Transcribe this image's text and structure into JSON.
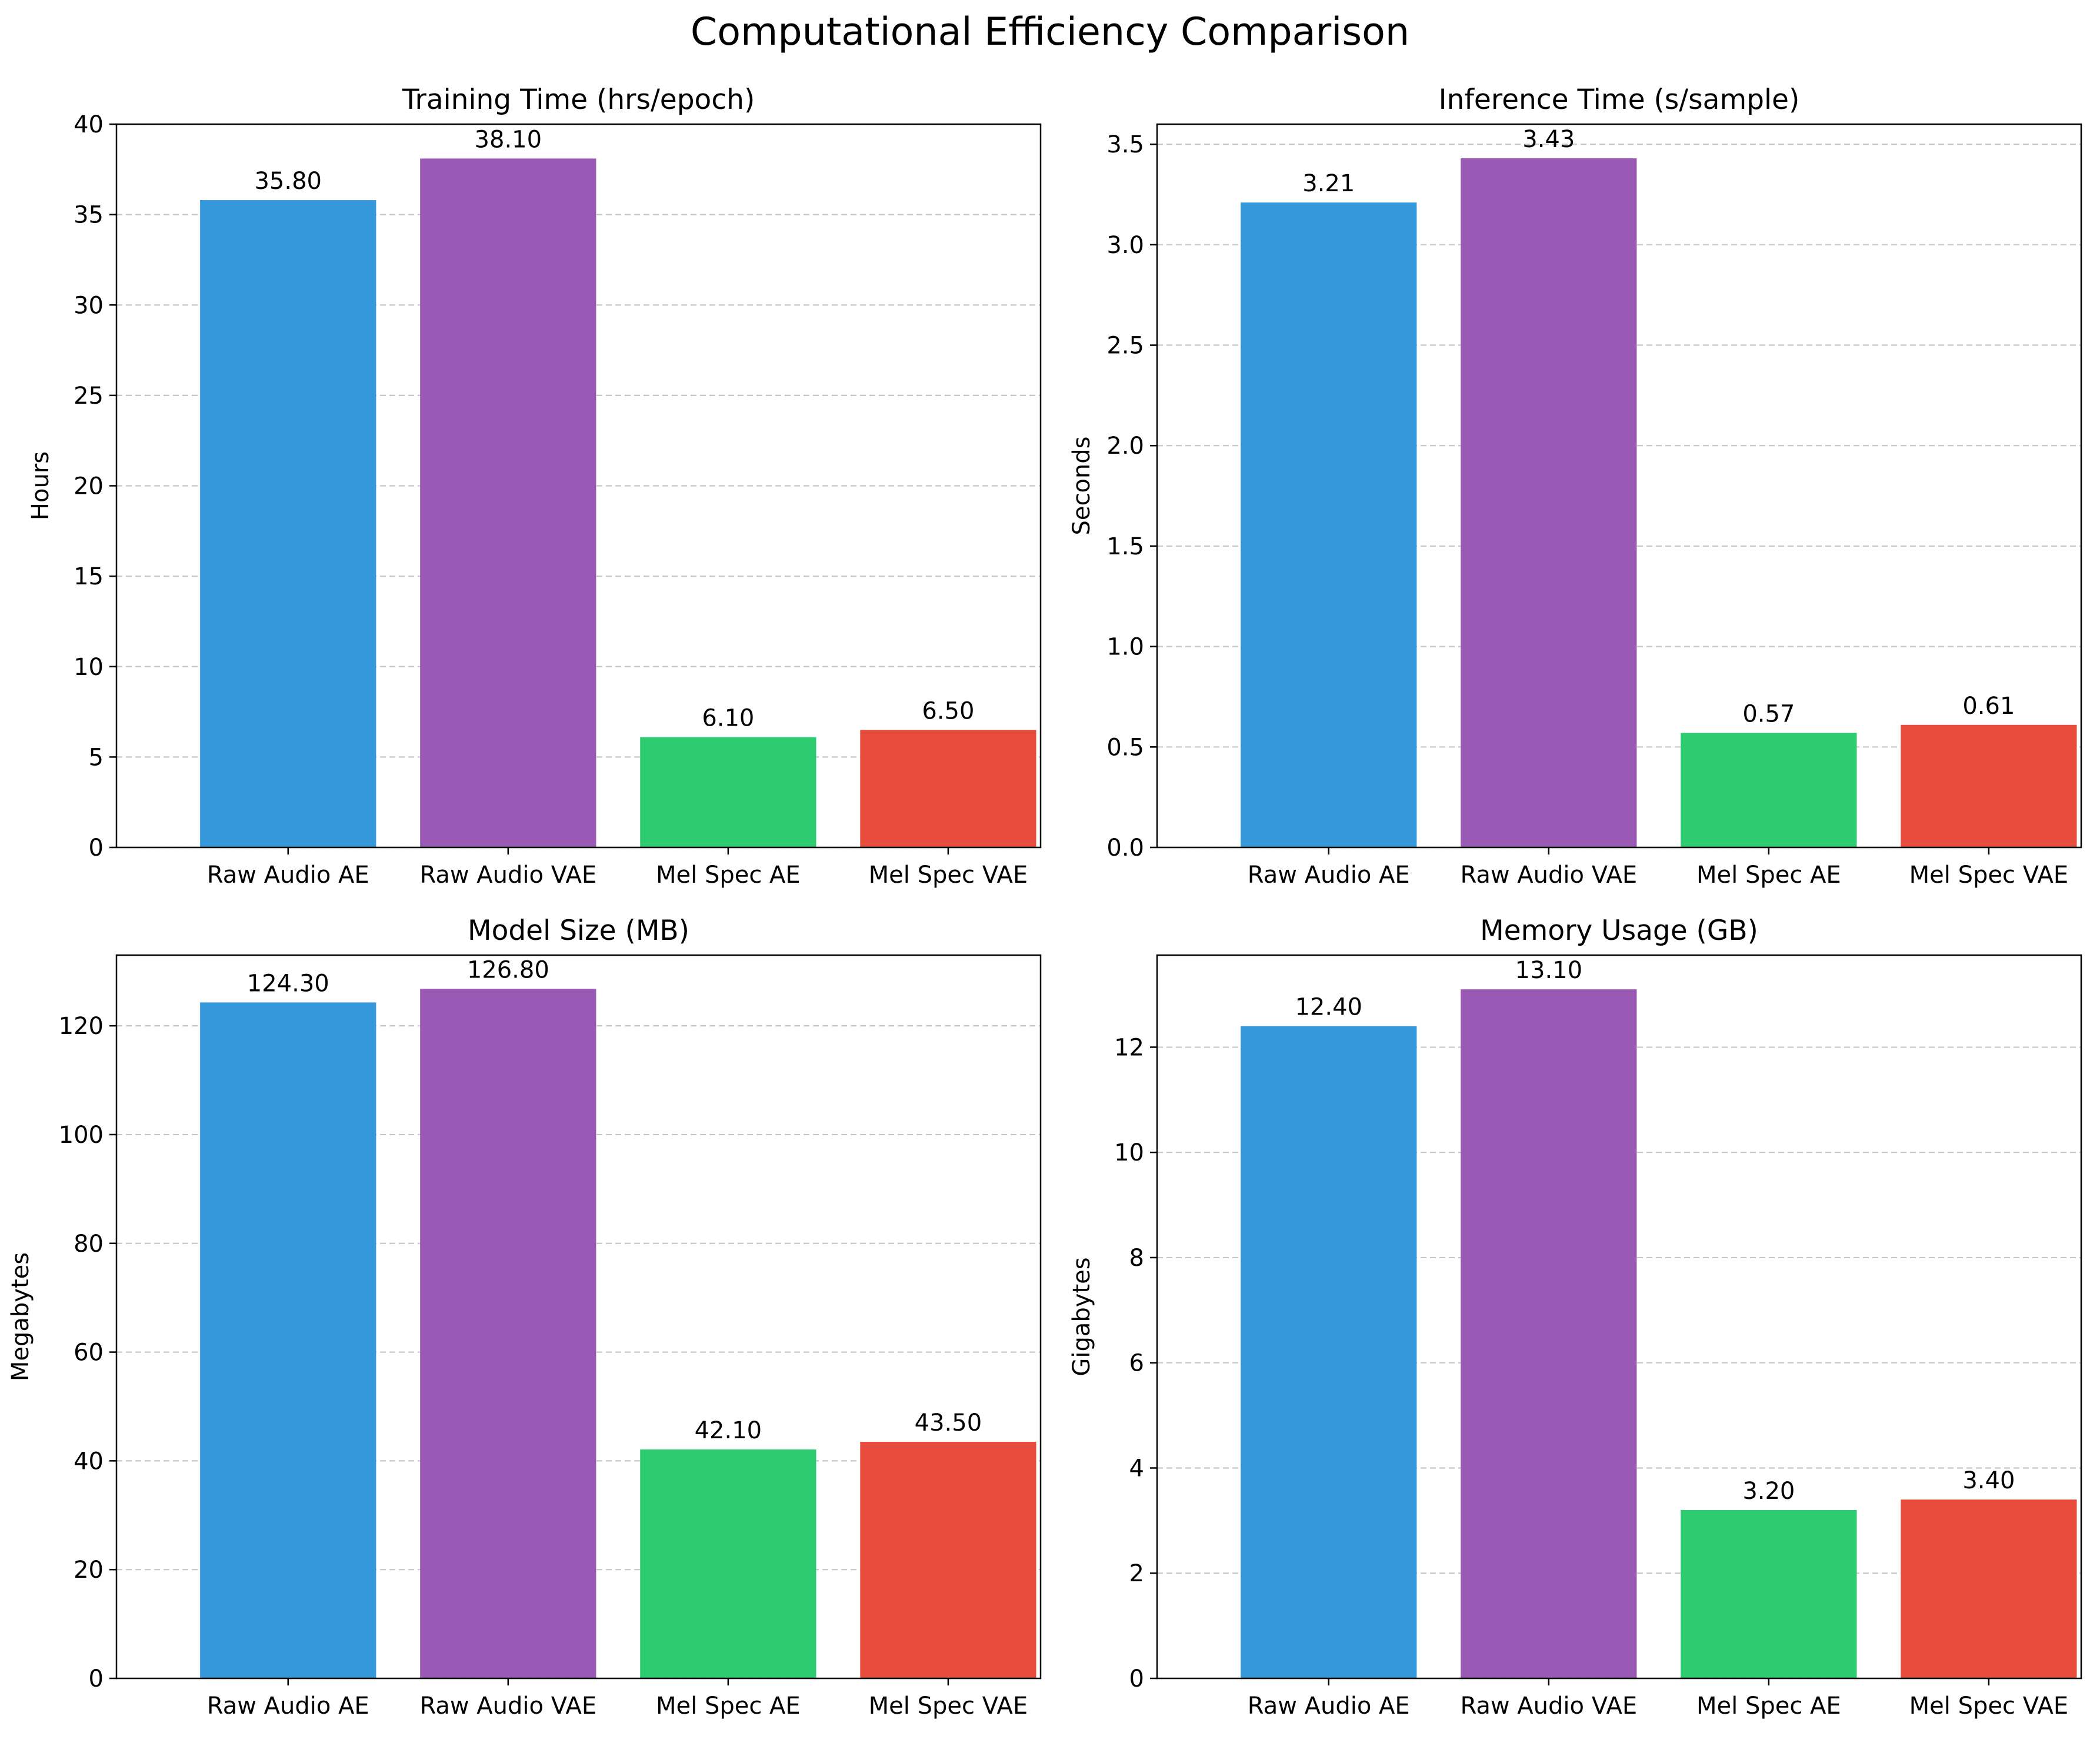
{
  "figure_title": "Computational Efficiency Comparison",
  "chart_data": [
    {
      "type": "bar",
      "title": "Training Time (hrs/epoch)",
      "xlabel": "",
      "ylabel": "Hours",
      "categories": [
        "Raw Audio AE",
        "Raw Audio VAE",
        "Mel Spec AE",
        "Mel Spec VAE"
      ],
      "values": [
        35.8,
        38.1,
        6.1,
        6.5
      ],
      "value_labels": [
        "35.80",
        "38.10",
        "6.10",
        "6.50"
      ],
      "colors": [
        "#3498db",
        "#9b59b6",
        "#2ecc71",
        "#e74c3c"
      ],
      "ylim": [
        0,
        40
      ],
      "yticks": [
        0,
        5,
        10,
        15,
        20,
        25,
        30,
        35,
        40
      ],
      "ytick_labels": [
        "0",
        "5",
        "10",
        "15",
        "20",
        "25",
        "30",
        "35",
        "40"
      ],
      "grid": "y-dashed"
    },
    {
      "type": "bar",
      "title": "Inference Time (s/sample)",
      "xlabel": "",
      "ylabel": "Seconds",
      "categories": [
        "Raw Audio AE",
        "Raw Audio VAE",
        "Mel Spec AE",
        "Mel Spec VAE"
      ],
      "values": [
        3.21,
        3.43,
        0.57,
        0.61
      ],
      "value_labels": [
        "3.21",
        "3.43",
        "0.57",
        "0.61"
      ],
      "colors": [
        "#3498db",
        "#9b59b6",
        "#2ecc71",
        "#e74c3c"
      ],
      "ylim": [
        0,
        3.6
      ],
      "yticks": [
        0,
        0.5,
        1,
        1.5,
        2,
        2.5,
        3,
        3.5
      ],
      "ytick_labels": [
        "0.0",
        "0.5",
        "1.0",
        "1.5",
        "2.0",
        "2.5",
        "3.0",
        "3.5"
      ],
      "grid": "y-dashed"
    },
    {
      "type": "bar",
      "title": "Model Size (MB)",
      "xlabel": "",
      "ylabel": "Megabytes",
      "categories": [
        "Raw Audio AE",
        "Raw Audio VAE",
        "Mel Spec AE",
        "Mel Spec VAE"
      ],
      "values": [
        124.3,
        126.8,
        42.1,
        43.5
      ],
      "value_labels": [
        "124.30",
        "126.80",
        "42.10",
        "43.50"
      ],
      "colors": [
        "#3498db",
        "#9b59b6",
        "#2ecc71",
        "#e74c3c"
      ],
      "ylim": [
        0,
        133
      ],
      "yticks": [
        0,
        20,
        40,
        60,
        80,
        100,
        120
      ],
      "ytick_labels": [
        "0",
        "20",
        "40",
        "60",
        "80",
        "100",
        "120"
      ],
      "grid": "y-dashed"
    },
    {
      "type": "bar",
      "title": "Memory Usage (GB)",
      "xlabel": "",
      "ylabel": "Gigabytes",
      "categories": [
        "Raw Audio AE",
        "Raw Audio VAE",
        "Mel Spec AE",
        "Mel Spec VAE"
      ],
      "values": [
        12.4,
        13.1,
        3.2,
        3.4
      ],
      "value_labels": [
        "12.40",
        "13.10",
        "3.20",
        "3.40"
      ],
      "colors": [
        "#3498db",
        "#9b59b6",
        "#2ecc71",
        "#e74c3c"
      ],
      "ylim": [
        0,
        13.75
      ],
      "yticks": [
        0,
        2,
        4,
        6,
        8,
        10,
        12
      ],
      "ytick_labels": [
        "0",
        "2",
        "4",
        "6",
        "8",
        "10",
        "12"
      ],
      "grid": "y-dashed"
    }
  ]
}
